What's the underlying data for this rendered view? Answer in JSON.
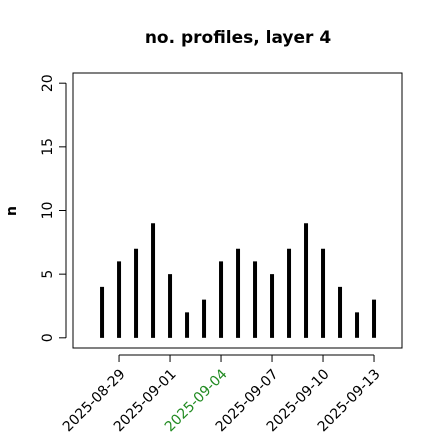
{
  "chart_data": {
    "type": "spike",
    "title": "no. profiles, layer 4",
    "y_label": "n",
    "x": [
      "2025-08-28",
      "2025-08-29",
      "2025-08-30",
      "2025-08-31",
      "2025-09-01",
      "2025-09-02",
      "2025-09-03",
      "2025-09-04",
      "2025-09-05",
      "2025-09-06",
      "2025-09-07",
      "2025-09-08",
      "2025-09-09",
      "2025-09-10",
      "2025-09-11",
      "2025-09-12",
      "2025-09-13"
    ],
    "values": [
      4,
      6,
      7,
      9,
      5,
      2,
      3,
      6,
      7,
      6,
      5,
      7,
      9,
      7,
      4,
      2,
      3
    ],
    "color": "#000000",
    "xlim": [
      "2025-08-26T07:00",
      "2025-09-14T15:30"
    ],
    "xticks": [
      "2025-08-29",
      "2025-09-01",
      "2025-09-04",
      "2025-09-07",
      "2025-09-10",
      "2025-09-13"
    ],
    "highlight_tick": "2025-09-04",
    "highlight_color": "#228b22",
    "ylim": [
      -0.8,
      20.8
    ],
    "yticks": [
      0,
      5,
      10,
      15,
      20
    ]
  }
}
